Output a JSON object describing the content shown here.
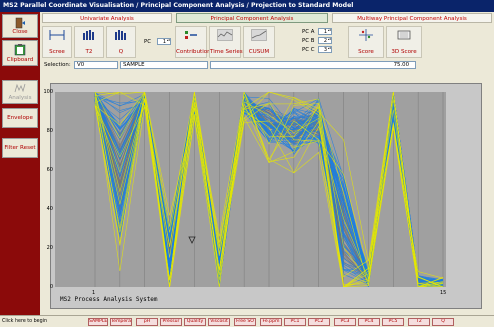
{
  "window": {
    "title": "MS2 Parallel Coordinate Visualisation / Principal Component Analysis / Projection to Standard Model"
  },
  "sidebar": {
    "items": [
      {
        "label": "Close",
        "icon": "door-exit-icon",
        "enabled": true
      },
      {
        "label": "Clipboard",
        "icon": "clipboard-icon",
        "enabled": true
      },
      {
        "label": "Analysis",
        "icon": "analysis-icon",
        "enabled": false
      },
      {
        "label": "Envelope",
        "enabled": true
      },
      {
        "label": "Filter Reset",
        "enabled": true
      }
    ]
  },
  "tabs": [
    {
      "label": "Univariate Analysis",
      "active": false
    },
    {
      "label": "Principal Component Analysis",
      "active": true
    },
    {
      "label": "Multiway Principal Component Analysis",
      "active": false
    }
  ],
  "toolbar": {
    "scree": "Scree",
    "t2": "T2",
    "q": "Q",
    "pc_label": "PC",
    "pc_value": "1",
    "contribution": "Contribution",
    "time_series": "Time Series",
    "cusum": "CUSUM",
    "pca_label": "PC A",
    "pca_value": "1",
    "pcb_label": "PC B",
    "pcb_value": "2",
    "pcc_label": "PC C",
    "pcc_value": "3",
    "score": "Score",
    "score3d": "3D Score"
  },
  "selection": {
    "label": "Selection:",
    "id": "V0",
    "name": "SAMPLE",
    "value": "75.00"
  },
  "plot": {
    "caption": "MS2 Process Analysis System",
    "yticks": [
      "100",
      "80",
      "60",
      "40",
      "20",
      "0"
    ],
    "xticks": [
      "1",
      "15"
    ]
  },
  "variables": [
    "SAMPLE",
    "Tempera",
    "pH",
    "Pressur",
    "Quality",
    "Viscosit",
    "Free SO",
    "Fe.ppm",
    "PC1",
    "PC2",
    "PC3",
    "PC4",
    "PC5",
    "T2",
    "Q"
  ],
  "status": {
    "text": "Click here to begin"
  },
  "colors": {
    "sidebar": "#8b0a0a",
    "title": "#0a246a",
    "line_blue": "#1e7fe0",
    "line_yellow": "#e8e800",
    "line_grey": "#707070"
  }
}
